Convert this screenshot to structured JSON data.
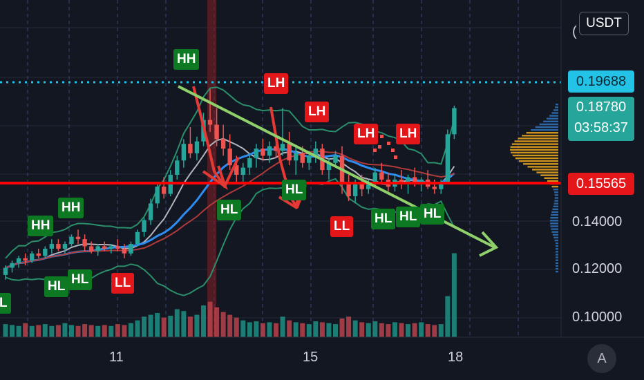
{
  "chart_data": {
    "type": "candlestick",
    "currency": "USDT",
    "y_ticks": [
      0.14,
      0.12,
      0.1
    ],
    "x_ticks": [
      "11",
      "15",
      "18"
    ],
    "price_labels": {
      "high_line": "0.19688",
      "last": "0.18780",
      "countdown": "03:58:37",
      "support": "0.15565"
    },
    "annotations": [
      {
        "text": "L",
        "color": "green"
      },
      {
        "text": "HH",
        "color": "green"
      },
      {
        "text": "HL",
        "color": "green"
      },
      {
        "text": "HH",
        "color": "green"
      },
      {
        "text": "HL",
        "color": "green"
      },
      {
        "text": "LL",
        "color": "red"
      },
      {
        "text": "HH",
        "color": "green"
      },
      {
        "text": "HL",
        "color": "green"
      },
      {
        "text": "LH",
        "color": "red"
      },
      {
        "text": "LH",
        "color": "red"
      },
      {
        "text": "HL",
        "color": "green"
      },
      {
        "text": "LL",
        "color": "red"
      },
      {
        "text": "LH",
        "color": "red"
      },
      {
        "text": "LH",
        "color": "red"
      },
      {
        "text": "HL",
        "color": "green"
      },
      {
        "text": "HL",
        "color": "green"
      },
      {
        "text": "HL",
        "color": "green"
      }
    ],
    "candles": [
      [
        0.118,
        0.122,
        0.116,
        0.121
      ],
      [
        0.121,
        0.124,
        0.119,
        0.123
      ],
      [
        0.123,
        0.126,
        0.121,
        0.125
      ],
      [
        0.125,
        0.127,
        0.122,
        0.124
      ],
      [
        0.124,
        0.128,
        0.123,
        0.127
      ],
      [
        0.127,
        0.129,
        0.125,
        0.126
      ],
      [
        0.126,
        0.13,
        0.125,
        0.129
      ],
      [
        0.129,
        0.133,
        0.127,
        0.131
      ],
      [
        0.131,
        0.133,
        0.128,
        0.129
      ],
      [
        0.129,
        0.132,
        0.127,
        0.131
      ],
      [
        0.131,
        0.135,
        0.13,
        0.134
      ],
      [
        0.134,
        0.137,
        0.131,
        0.133
      ],
      [
        0.133,
        0.135,
        0.128,
        0.13
      ],
      [
        0.13,
        0.132,
        0.127,
        0.128
      ],
      [
        0.128,
        0.131,
        0.126,
        0.13
      ],
      [
        0.13,
        0.132,
        0.128,
        0.129
      ],
      [
        0.129,
        0.131,
        0.127,
        0.13
      ],
      [
        0.13,
        0.133,
        0.128,
        0.129
      ],
      [
        0.129,
        0.131,
        0.125,
        0.127
      ],
      [
        0.127,
        0.132,
        0.126,
        0.131
      ],
      [
        0.131,
        0.137,
        0.13,
        0.136
      ],
      [
        0.136,
        0.142,
        0.134,
        0.141
      ],
      [
        0.141,
        0.15,
        0.139,
        0.148
      ],
      [
        0.148,
        0.157,
        0.146,
        0.155
      ],
      [
        0.155,
        0.159,
        0.15,
        0.152
      ],
      [
        0.152,
        0.162,
        0.151,
        0.16
      ],
      [
        0.16,
        0.168,
        0.158,
        0.166
      ],
      [
        0.166,
        0.175,
        0.163,
        0.173
      ],
      [
        0.173,
        0.18,
        0.167,
        0.169
      ],
      [
        0.169,
        0.176,
        0.166,
        0.174
      ],
      [
        0.174,
        0.186,
        0.172,
        0.183
      ],
      [
        0.183,
        0.196,
        0.178,
        0.181
      ],
      [
        0.181,
        0.188,
        0.172,
        0.175
      ],
      [
        0.175,
        0.181,
        0.168,
        0.171
      ],
      [
        0.171,
        0.177,
        0.162,
        0.164
      ],
      [
        0.164,
        0.168,
        0.157,
        0.16
      ],
      [
        0.16,
        0.165,
        0.156,
        0.163
      ],
      [
        0.163,
        0.169,
        0.16,
        0.167
      ],
      [
        0.167,
        0.173,
        0.163,
        0.171
      ],
      [
        0.171,
        0.175,
        0.166,
        0.168
      ],
      [
        0.168,
        0.174,
        0.165,
        0.172
      ],
      [
        0.172,
        0.176,
        0.167,
        0.17
      ],
      [
        0.17,
        0.188,
        0.168,
        0.173
      ],
      [
        0.173,
        0.178,
        0.164,
        0.166
      ],
      [
        0.166,
        0.172,
        0.16,
        0.169
      ],
      [
        0.169,
        0.172,
        0.163,
        0.165
      ],
      [
        0.165,
        0.17,
        0.162,
        0.168
      ],
      [
        0.168,
        0.174,
        0.165,
        0.171
      ],
      [
        0.171,
        0.173,
        0.16,
        0.162
      ],
      [
        0.162,
        0.167,
        0.158,
        0.165
      ],
      [
        0.165,
        0.17,
        0.163,
        0.168
      ],
      [
        0.168,
        0.172,
        0.152,
        0.156
      ],
      [
        0.156,
        0.16,
        0.149,
        0.151
      ],
      [
        0.151,
        0.158,
        0.148,
        0.156
      ],
      [
        0.156,
        0.16,
        0.151,
        0.154
      ],
      [
        0.154,
        0.158,
        0.152,
        0.157
      ],
      [
        0.157,
        0.163,
        0.155,
        0.161
      ],
      [
        0.161,
        0.165,
        0.156,
        0.158
      ],
      [
        0.158,
        0.161,
        0.153,
        0.155
      ],
      [
        0.155,
        0.16,
        0.153,
        0.158
      ],
      [
        0.158,
        0.162,
        0.154,
        0.156
      ],
      [
        0.156,
        0.16,
        0.152,
        0.159
      ],
      [
        0.159,
        0.163,
        0.155,
        0.156
      ],
      [
        0.156,
        0.159,
        0.153,
        0.158
      ],
      [
        0.158,
        0.162,
        0.154,
        0.155
      ],
      [
        0.155,
        0.158,
        0.152,
        0.154
      ],
      [
        0.154,
        0.158,
        0.152,
        0.157
      ],
      [
        0.157,
        0.179,
        0.156,
        0.177
      ],
      [
        0.177,
        0.189,
        0.175,
        0.188
      ]
    ],
    "volume": [
      14,
      13,
      12,
      15,
      12,
      13,
      14,
      12,
      13,
      15,
      13,
      12,
      14,
      13,
      12,
      13,
      12,
      14,
      13,
      15,
      18,
      22,
      24,
      26,
      21,
      23,
      30,
      28,
      22,
      24,
      34,
      38,
      32,
      27,
      24,
      21,
      18,
      16,
      17,
      15,
      16,
      15,
      22,
      18,
      16,
      15,
      14,
      17,
      16,
      15,
      14,
      20,
      22,
      18,
      16,
      15,
      17,
      15,
      14,
      16,
      15,
      14,
      15,
      16,
      14,
      13,
      14,
      44,
      90
    ],
    "volume_down": [
      3,
      5,
      8,
      12,
      15,
      18,
      24,
      28,
      31,
      32,
      34,
      48,
      51,
      57,
      58,
      60,
      62,
      64,
      65
    ]
  }
}
